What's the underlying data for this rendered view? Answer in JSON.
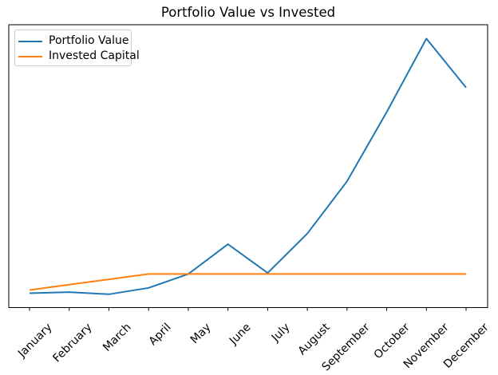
{
  "chart_data": {
    "type": "line",
    "title": "Portfolio Value vs Invested",
    "x": [
      "January",
      "February",
      "March",
      "April",
      "May",
      "June",
      "July",
      "August",
      "September",
      "October",
      "November",
      "December"
    ],
    "series": [
      {
        "name": "Portfolio Value",
        "color": "#1f77b4",
        "values": [
          850,
          900,
          800,
          1100,
          1750,
          3150,
          1800,
          3650,
          6100,
          9350,
          12800,
          10500
        ]
      },
      {
        "name": "Invested Capital",
        "color": "#ff7f0e",
        "values": [
          1000,
          1250,
          1500,
          1750,
          1750,
          1750,
          1750,
          1750,
          1750,
          1750,
          1750,
          1750
        ]
      }
    ],
    "xlabel": "",
    "ylabel": "",
    "ylim": [
      175,
      13450
    ],
    "grid": false,
    "y_ticks_visible": false,
    "x_tick_rotation": 45,
    "legend_position": "upper left",
    "axis_color": "#000000",
    "background_color": "#ffffff"
  }
}
